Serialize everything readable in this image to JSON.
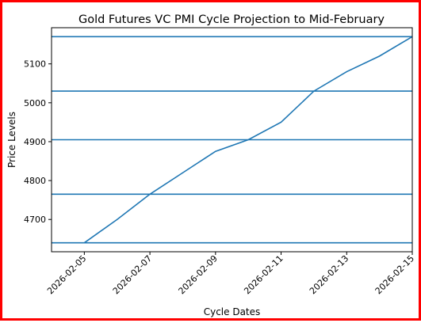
{
  "chart_data": {
    "type": "line",
    "title": "Gold Futures VC PMI Cycle Projection to Mid-February",
    "xlabel": "Cycle Dates",
    "ylabel": "Price Levels",
    "x_tick_labels": [
      "2026-02-05",
      "2026-02-07",
      "2026-02-09",
      "2026-02-11",
      "2026-02-13",
      "2026-02-15"
    ],
    "y_tick_labels": [
      "4700",
      "4800",
      "4900",
      "5000",
      "5100"
    ],
    "x": [
      "2026-02-05",
      "2026-02-06",
      "2026-02-07",
      "2026-02-08",
      "2026-02-09",
      "2026-02-10",
      "2026-02-11",
      "2026-02-12",
      "2026-02-13",
      "2026-02-14",
      "2026-02-15"
    ],
    "series": [
      {
        "values": [
          4640,
          4700,
          4765,
          4820,
          4875,
          4905,
          4950,
          5030,
          5080,
          5120,
          5170
        ]
      }
    ],
    "horizontal_lines": [
      4640,
      4765,
      4905,
      5030,
      5170
    ],
    "xlim": [
      "2026-02-04",
      "2026-02-15"
    ],
    "ylim": [
      4617,
      5193
    ],
    "grid": false,
    "line_color": "#1f77b4"
  }
}
